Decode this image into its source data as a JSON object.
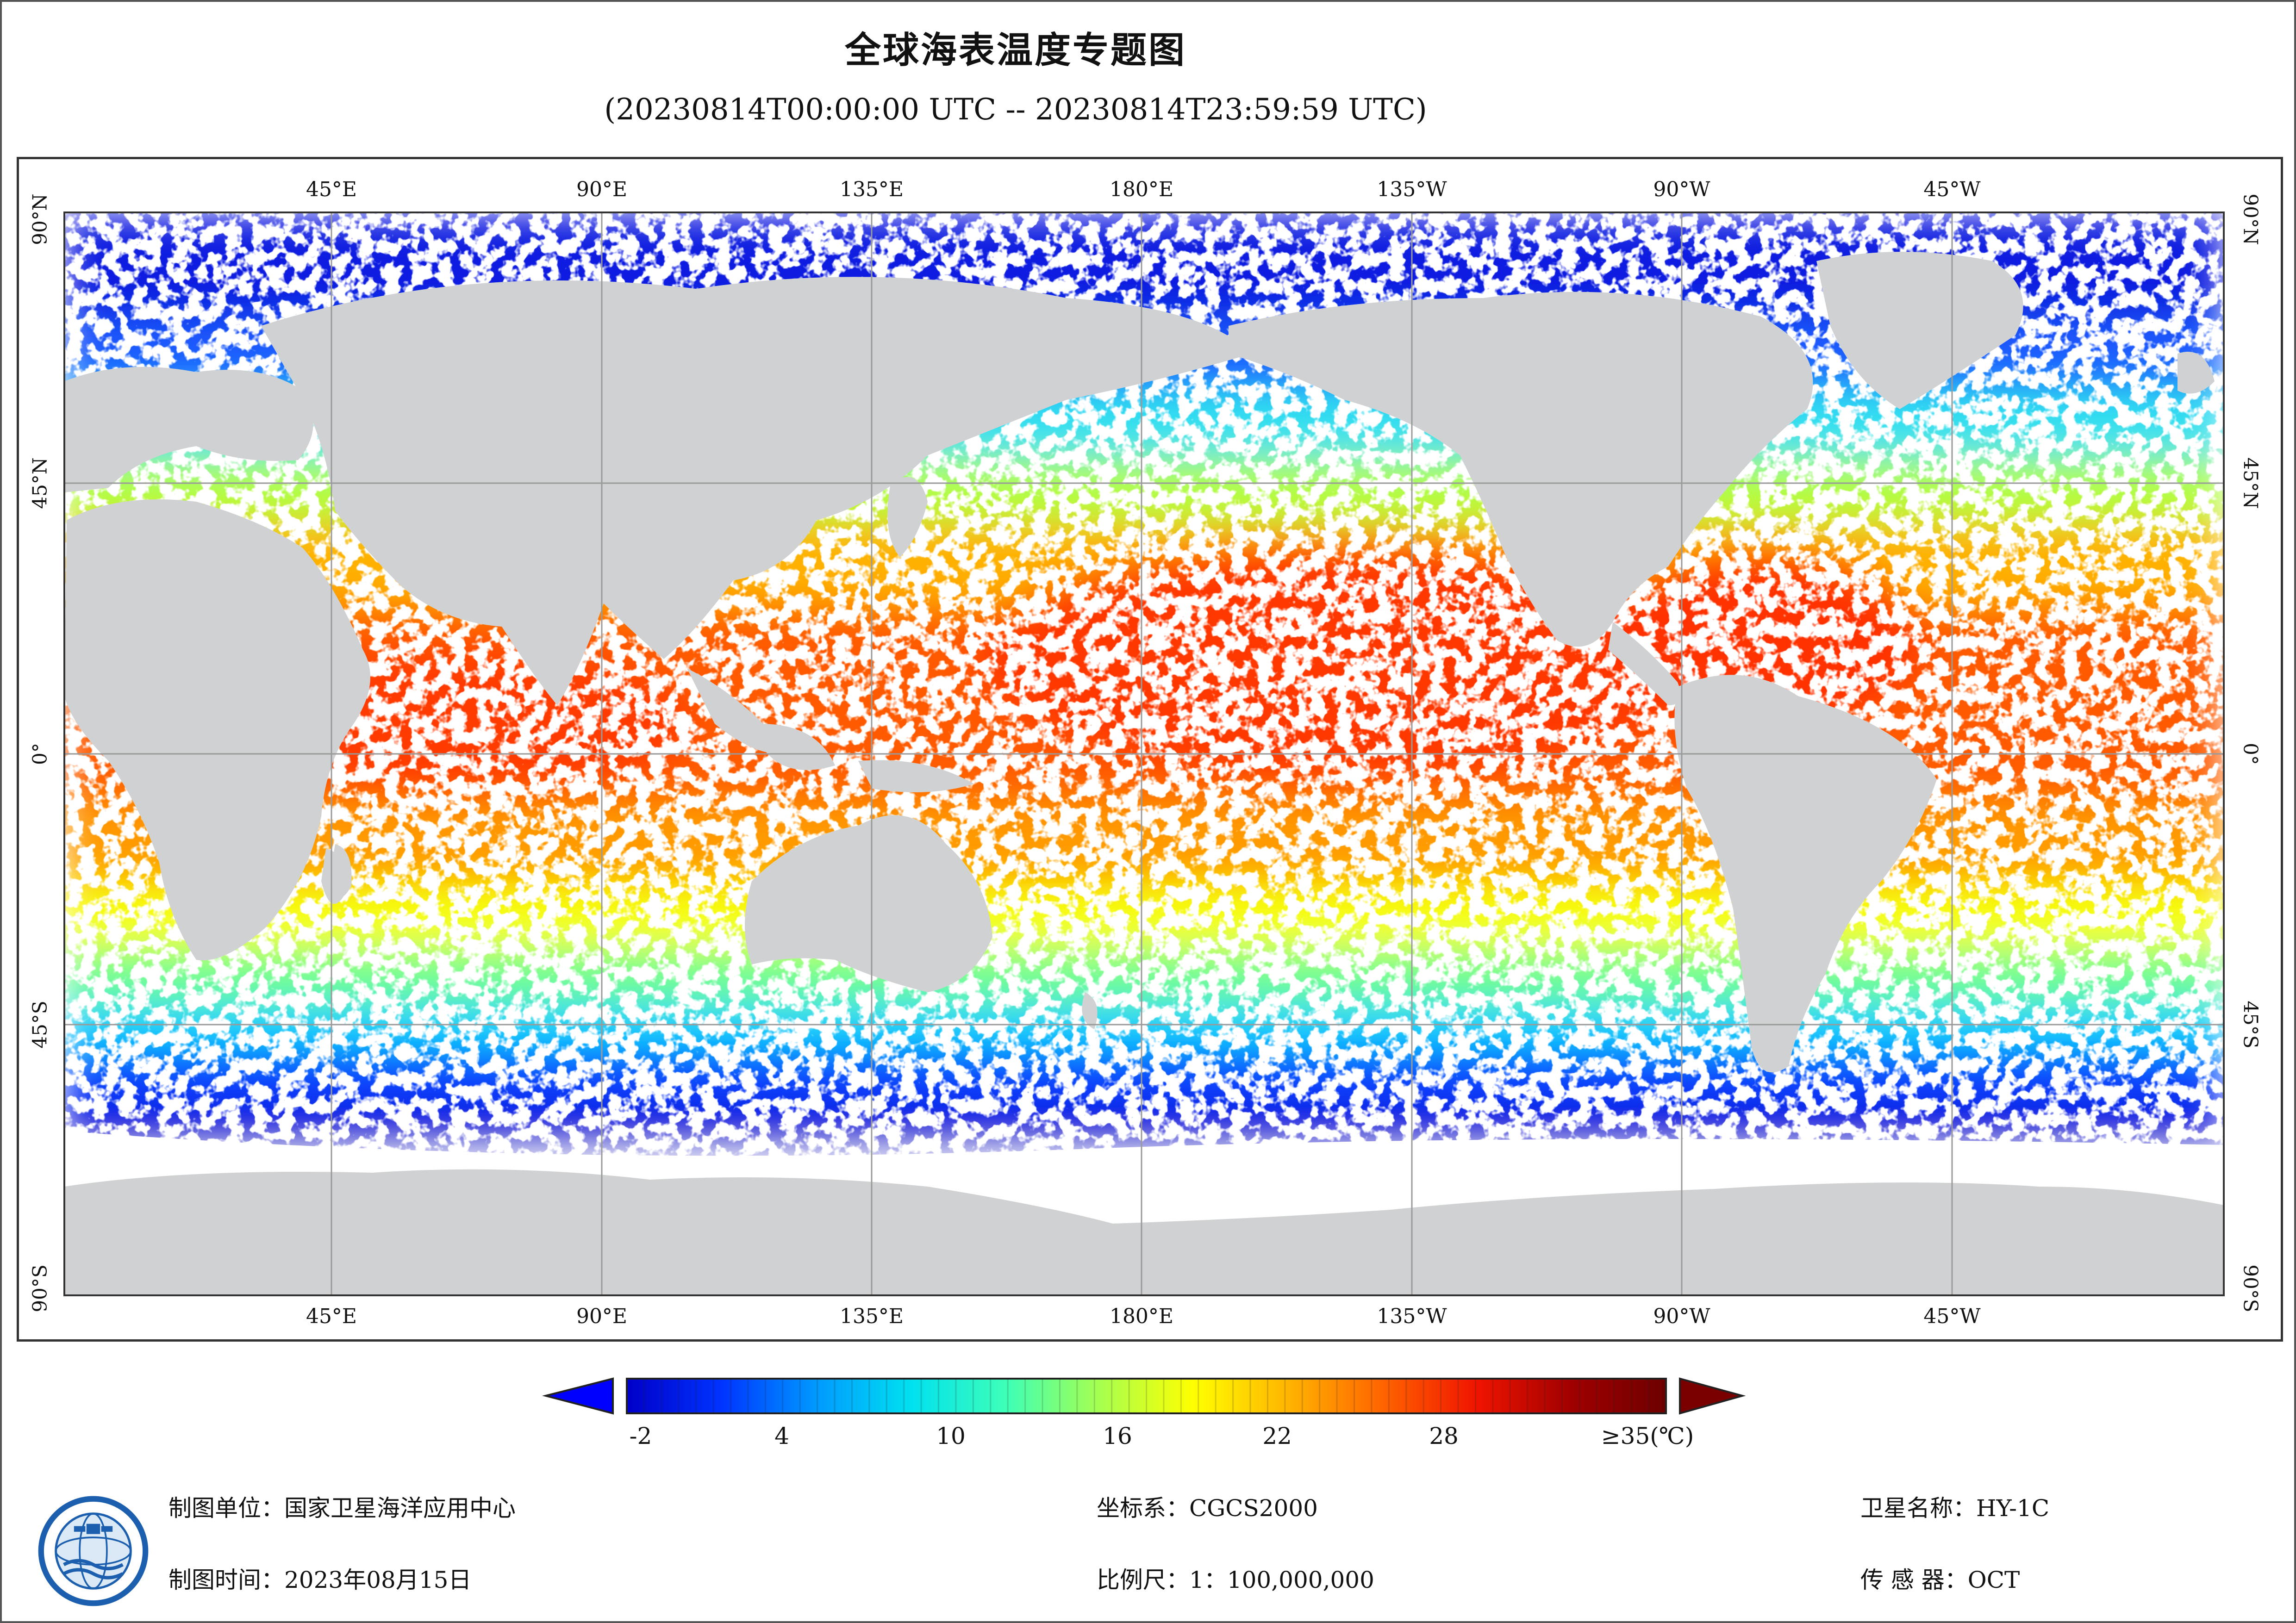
{
  "title": "全球海表温度专题图",
  "subtitle": "(20230814T00:00:00 UTC -- 20230814T23:59:59 UTC)",
  "map": {
    "top_lon_labels": [
      "45°E",
      "90°E",
      "135°E",
      "180°E",
      "135°W",
      "90°W",
      "45°W"
    ],
    "bottom_lon_labels": [
      "45°E",
      "90°E",
      "135°E",
      "180°E",
      "135°W",
      "90°W",
      "45°W"
    ],
    "lat_labels": [
      "90°N",
      "45°N",
      "0°",
      "45°S",
      "90°S"
    ],
    "colors": {
      "land": "#cfd1d3",
      "nodata": "#ffffff",
      "grid": "#9a9a9a",
      "frame": "#333333"
    }
  },
  "legend": {
    "tick_labels": [
      "-2",
      "4",
      "10",
      "16",
      "22",
      "28",
      "≥35(℃)"
    ],
    "range": [
      -2,
      35
    ],
    "colors": [
      "#0000c8",
      "#0033ff",
      "#0099ff",
      "#00e0f0",
      "#3cffb8",
      "#a6ff50",
      "#ffff00",
      "#ffb400",
      "#ff6400",
      "#f01400",
      "#a00000",
      "#6e0000"
    ],
    "under_color": "#0000ff",
    "over_color": "#7a0000"
  },
  "footer": {
    "producer": "制图单位：国家卫星海洋应用中心",
    "date": "制图时间：2023年08月15日",
    "coord_system": "坐标系：CGCS2000",
    "scale": "比例尺：1：100,000,000",
    "satellite": "卫星名称：HY-1C",
    "sensor": "传 感 器：OCT"
  },
  "logo_icon": "nsoas-globe-logo-icon"
}
